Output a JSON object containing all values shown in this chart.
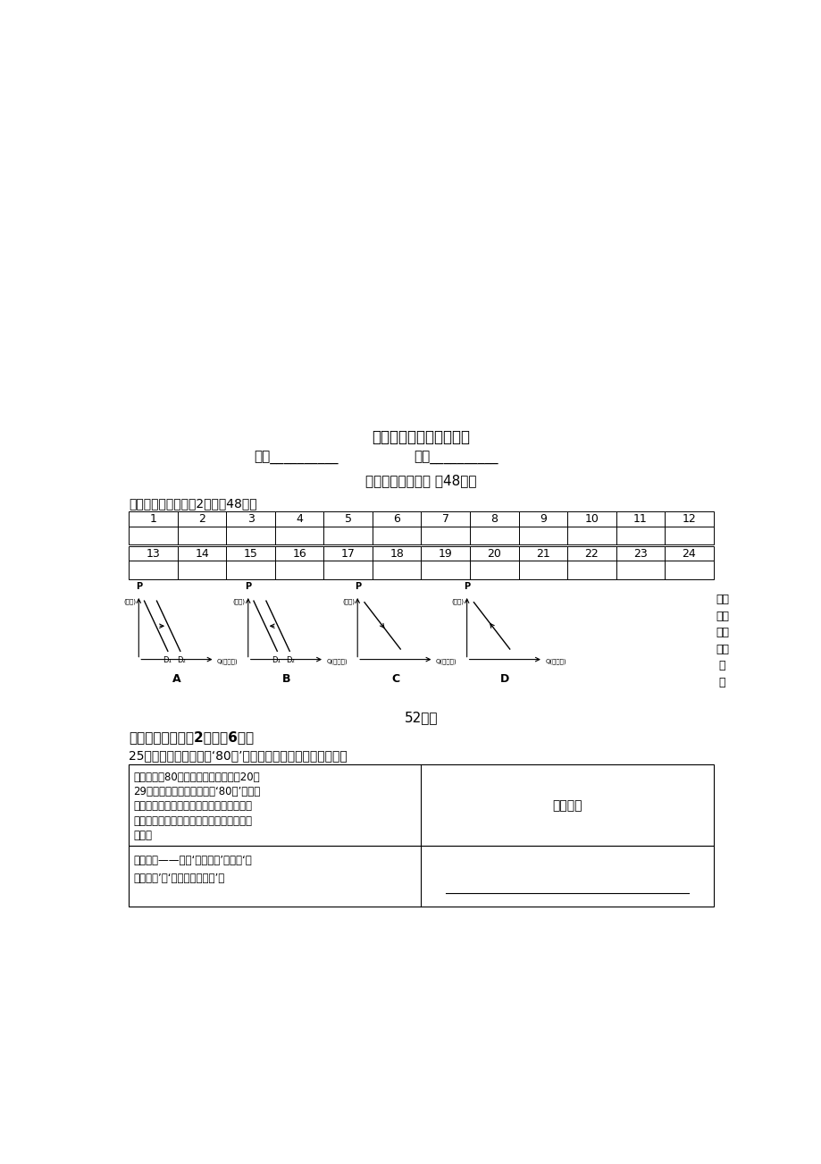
{
  "title": "经济生活第一单元检测题",
  "name_label": "姓名__________",
  "class_label": "班级__________",
  "part1_label": "第一部分（选择题 共48分）",
  "section1_label": "一、选择题（每小题2分，共48分）",
  "row1": [
    1,
    2,
    3,
    4,
    5,
    6,
    7,
    8,
    9,
    10,
    11,
    12
  ],
  "row2": [
    13,
    14,
    15,
    16,
    17,
    18,
    19,
    20,
    21,
    22,
    23,
    24
  ],
  "part2_side": [
    "第二",
    "部分",
    "（非",
    "选择",
    "题",
    "共"
  ],
  "part2_score": "52分）",
  "section2_label": "二、填空题（每空2分，共6分）",
  "q25_label": "25、结合材料简要概括‘80后’的消费特征所体现的消费心理。",
  "table2_col1_row1_lines": [
    "　　上世纪80年代出生、目前年龄在20至",
    "29岁之间的年轻一代被称为‘80后’。他们",
    "经历了市场经济、全球化、互联网进程的洗",
    "礼，消费观念、消费行为呈现出鲜明的消费",
    "特征："
  ],
  "table2_col2_row1": "消费心理",
  "table2_col1_row2_lines": [
    "追求个性——标榜‘我就喜欢’，崇尚‘我",
    "有我风格’、‘我的地盘我作主’。"
  ],
  "bg_color": "#ffffff",
  "text_color": "#000000",
  "graph_labels": [
    "A",
    "B",
    "C",
    "D"
  ],
  "graph_arrow_A": "right",
  "graph_arrow_B": "left",
  "graph_arrow_C": "down-right",
  "graph_arrow_D": "up-right"
}
